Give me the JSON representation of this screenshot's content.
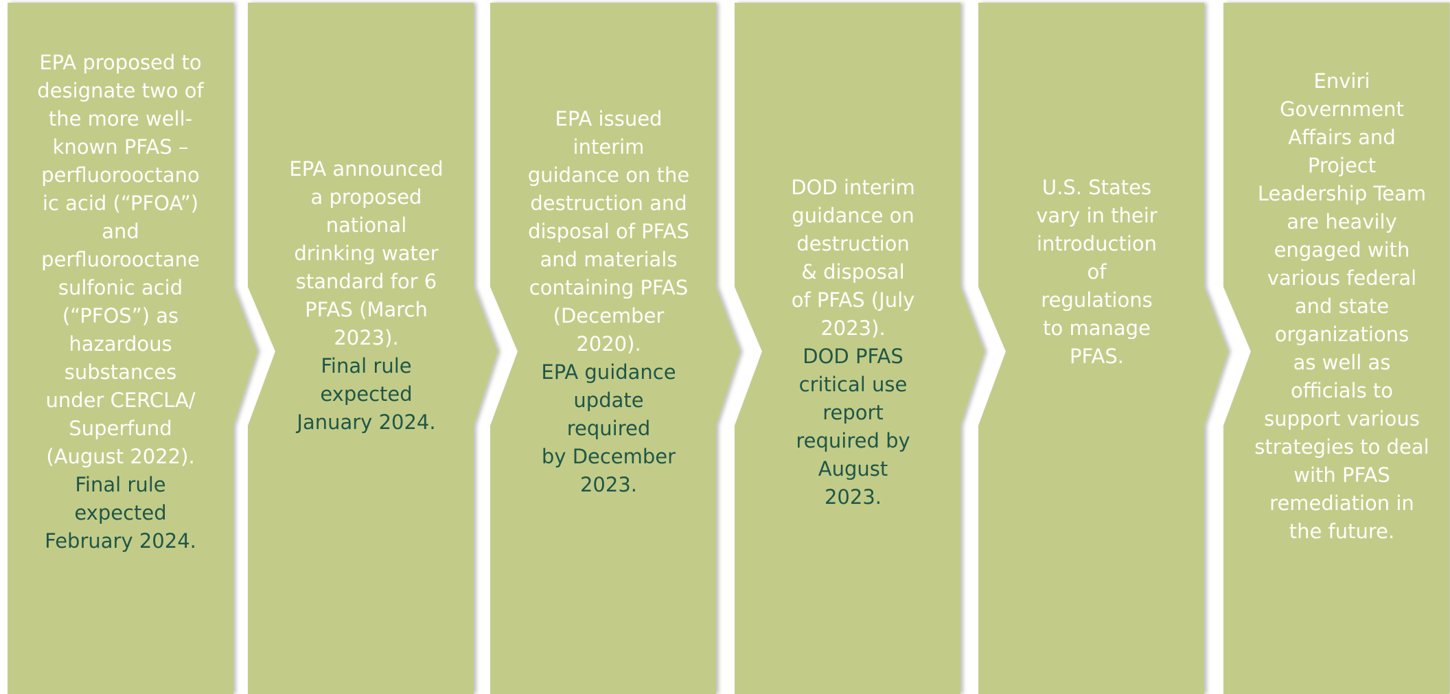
{
  "steps": [
    {
      "text": [
        "EPA proposed to",
        "designate two of",
        "the more well-",
        "known PFAS –",
        "perfluorooctano",
        "ic acid (“PFOA”)",
        "and",
        "perfluorooctane",
        "sulfonic acid",
        "(“PFOS”) as",
        "hazardous",
        "substances",
        "under CERCLA/",
        "Superfund",
        "(August 2022)."
      ],
      "note": [
        "Final rule",
        "expected",
        "February 2024."
      ]
    },
    {
      "text": [
        "EPA announced",
        "a proposed",
        "national",
        "drinking water",
        "standard for 6",
        "PFAS (March",
        "2023)."
      ],
      "note": [
        "Final rule",
        "expected",
        "January 2024."
      ]
    },
    {
      "text": [
        "EPA issued",
        "interim",
        "guidance on the",
        "destruction and",
        "disposal of PFAS",
        "and materials",
        "containing PFAS",
        "(December",
        "2020)."
      ],
      "note": [
        "EPA guidance",
        "update",
        "required",
        "by December",
        "2023."
      ]
    },
    {
      "text": [
        "DOD interim",
        "guidance on",
        "destruction",
        "& disposal",
        "of PFAS (July",
        "2023)."
      ],
      "note": [
        "DOD PFAS",
        "critical use",
        "report",
        "required by",
        "August",
        "2023."
      ]
    },
    {
      "text": [
        "U.S. States",
        "vary in their",
        "introduction",
        "of",
        "regulations",
        "to manage",
        "PFAS."
      ],
      "note": []
    },
    {
      "text": [
        "Enviri",
        "Government",
        "Affairs and",
        "Project",
        "Leadership Team",
        "are heavily",
        "engaged with",
        "various federal",
        "and state",
        "organizations",
        "as well as",
        "officials to",
        "support various",
        "strategies to deal",
        "with PFAS",
        "remediation in",
        "the future."
      ],
      "note": []
    }
  ]
}
